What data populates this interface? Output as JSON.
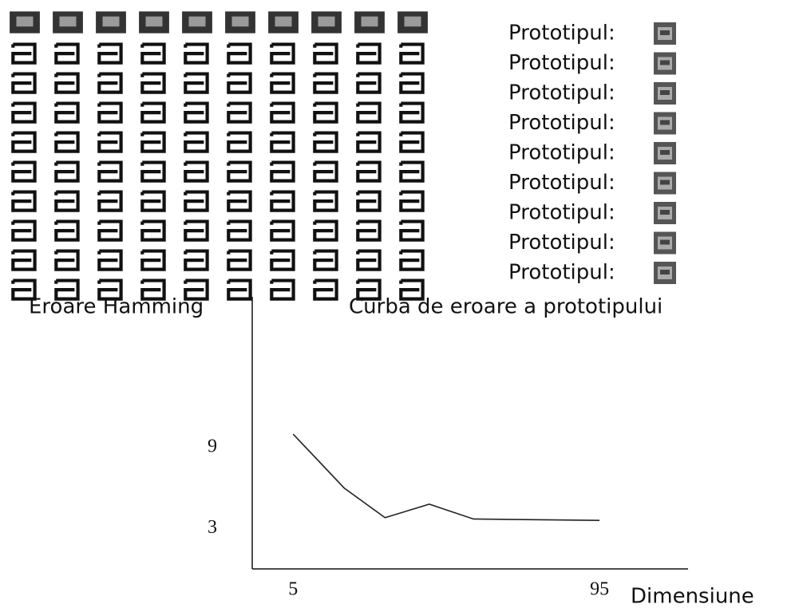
{
  "prototype_labels": [
    "Prototipul:",
    "Prototipul:",
    "Prototipul:",
    "Prototipul:",
    "Prototipul:",
    "Prototipul:",
    "Prototipul:",
    "Prototipul:",
    "Prototipul:"
  ],
  "chart_data": {
    "type": "line",
    "title": "Curba de eroare a prototipului",
    "y_label": "Eroare Hamming",
    "x_label": "Dimensiune",
    "x": [
      5,
      20,
      32,
      45,
      58,
      95
    ],
    "values": [
      10,
      6,
      3.8,
      4.8,
      3.7,
      3.6
    ],
    "color": "#222222",
    "xlim": [
      -7,
      121
    ],
    "ylim": [
      0,
      20
    ],
    "xticks": [
      5,
      95
    ],
    "yticks": [
      3,
      9
    ],
    "grid": false
  }
}
